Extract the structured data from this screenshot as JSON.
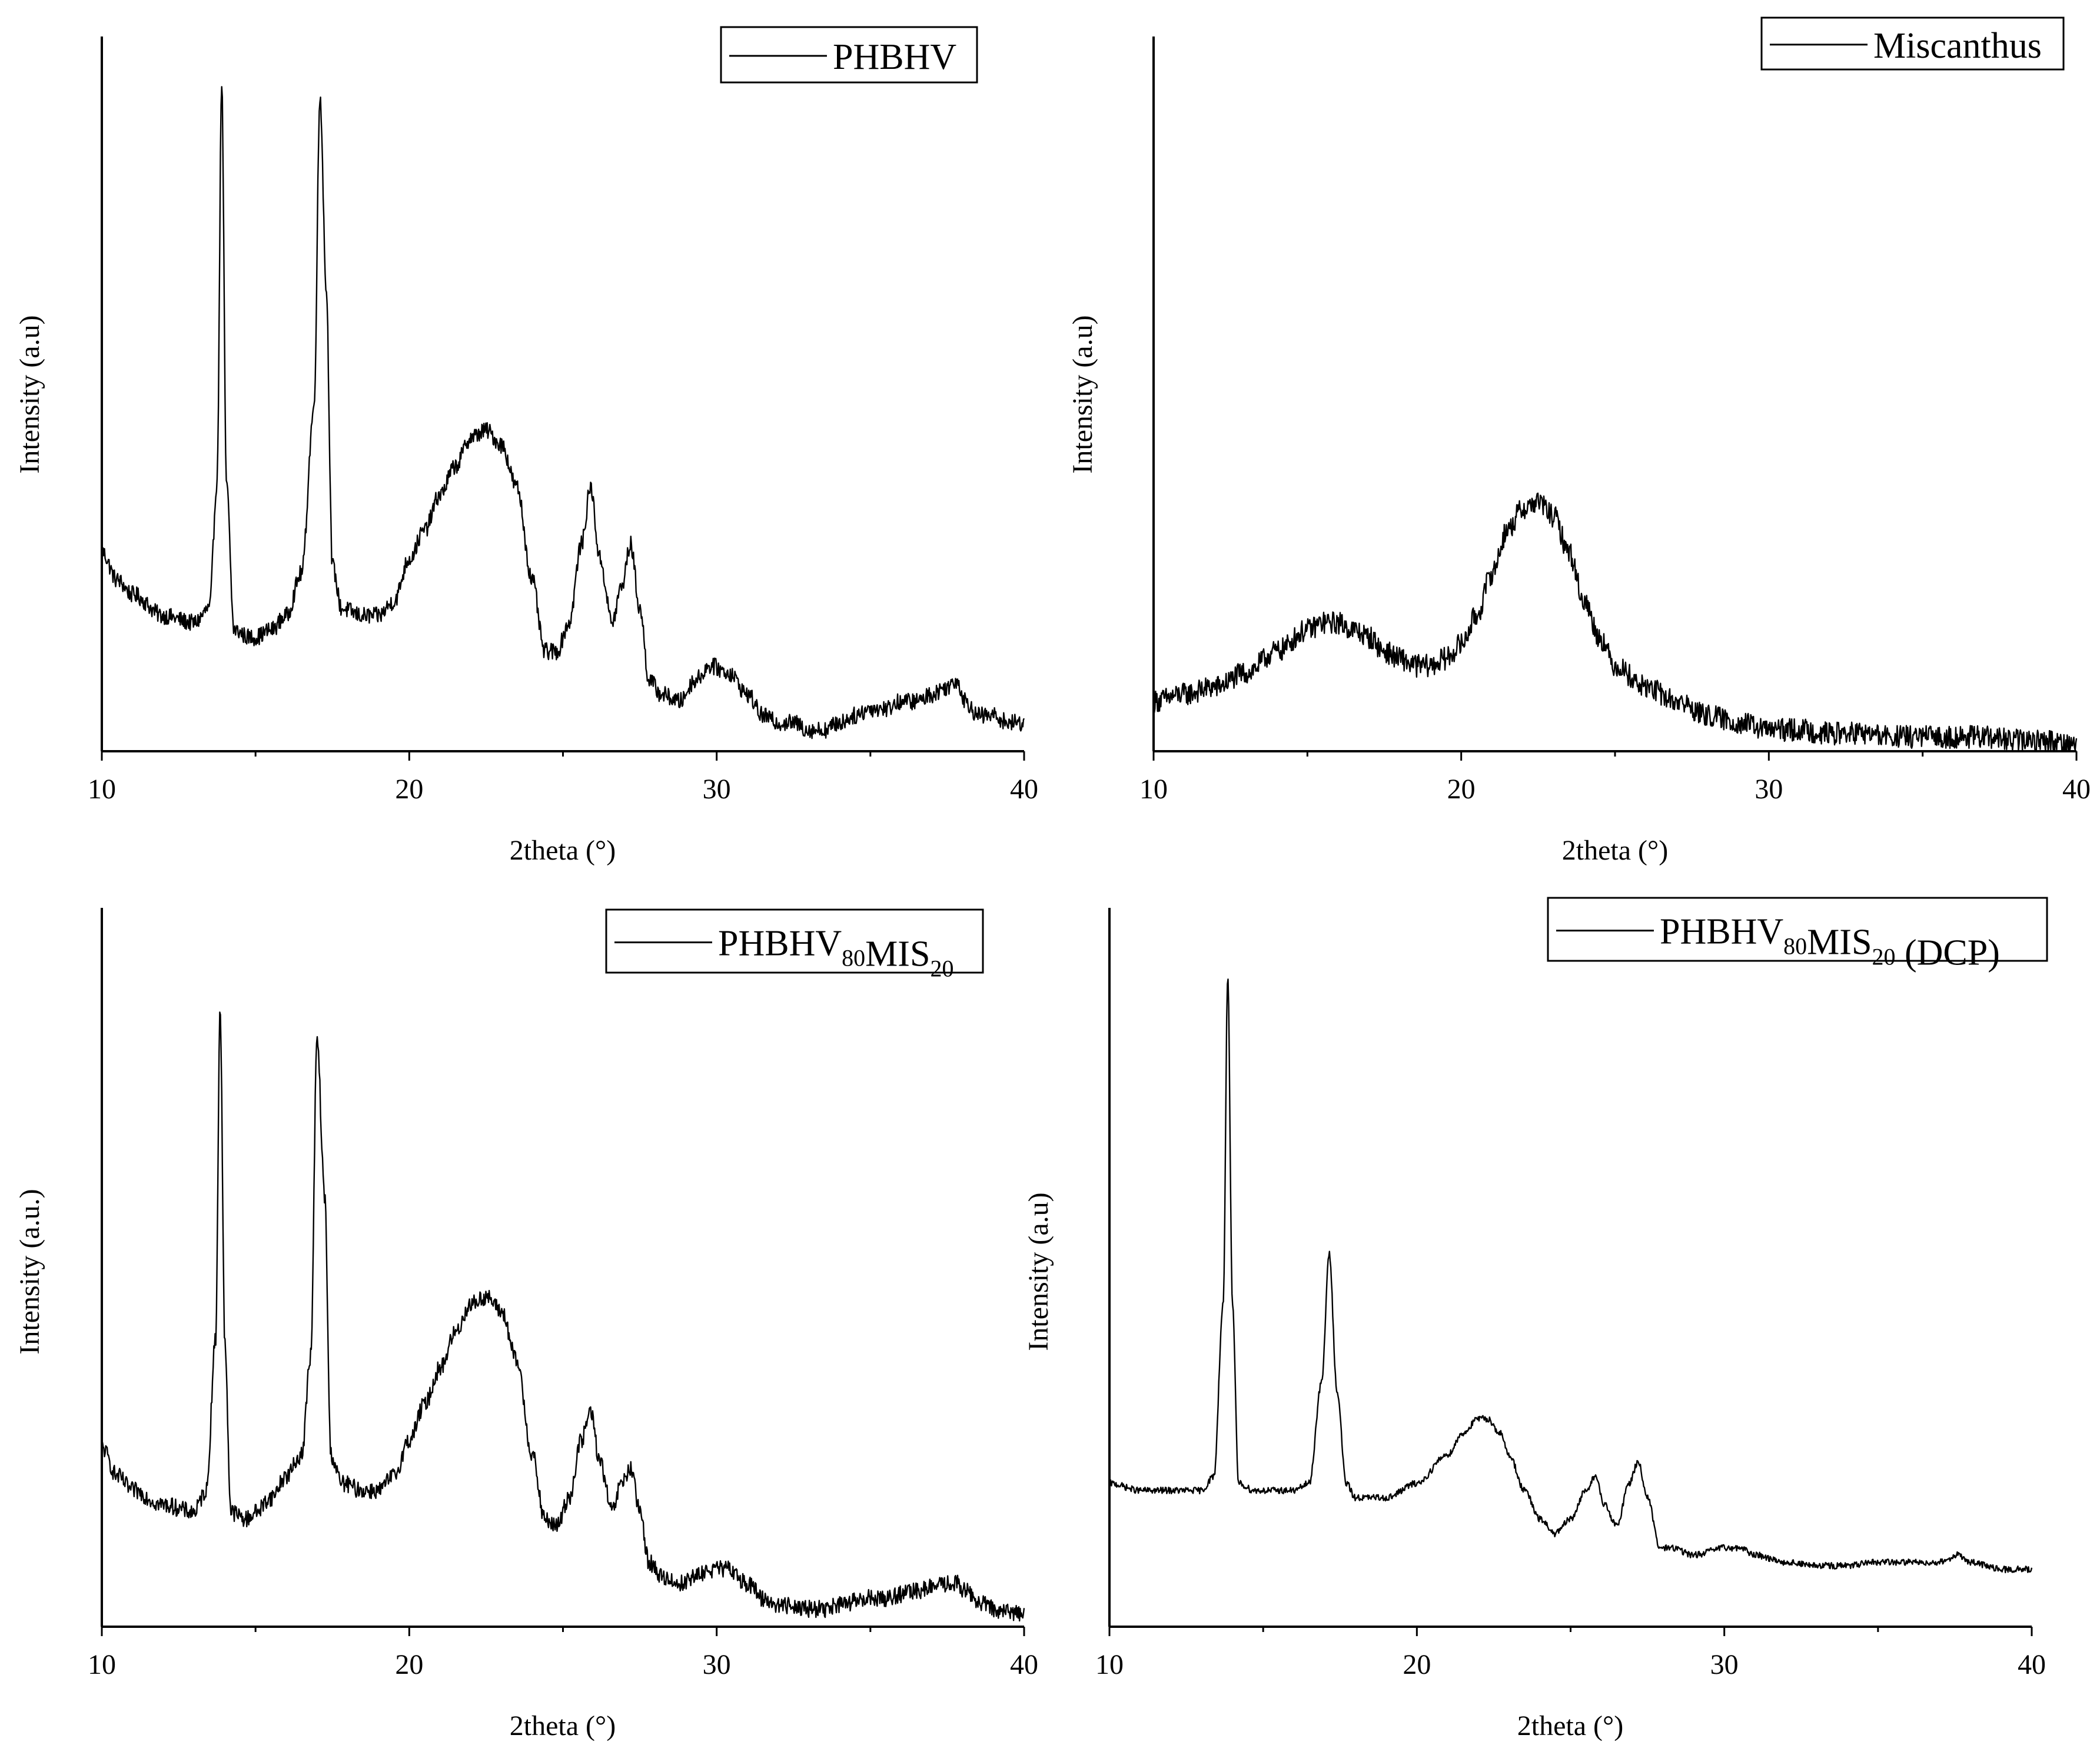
{
  "chart_data": [
    {
      "type": "line",
      "panel": "top-left",
      "title": "",
      "xlabel": "2theta (°)",
      "ylabel": "Intensity (a.u)",
      "xlim": [
        10,
        40
      ],
      "ylim": [
        0,
        100
      ],
      "xticks": [
        10,
        20,
        30,
        40
      ],
      "grid": false,
      "legend_position": "top-right",
      "legend": {
        "prefix": "PHBHV",
        "sub1": "",
        "mid": "",
        "sub2": "",
        "suffix": ""
      },
      "series": [
        {
          "name": "PHBHV",
          "noise": 1.2,
          "x": [
            10,
            10.5,
            11,
            12,
            13,
            13.5,
            13.75,
            13.9,
            14.05,
            14.3,
            14.8,
            15,
            15.5,
            16,
            16.5,
            16.9,
            17.1,
            17.3,
            17.5,
            17.8,
            18.5,
            19,
            19.5,
            20,
            20.5,
            21,
            21.5,
            22,
            22.5,
            23,
            23.5,
            24,
            24.4,
            24.8,
            25.2,
            25.6,
            25.9,
            26.2,
            26.6,
            26.9,
            27.2,
            27.5,
            27.8,
            28.2,
            28.8,
            29.3,
            29.8,
            30.4,
            31,
            31.5,
            32,
            32.5,
            33,
            33.5,
            34,
            34.5,
            35,
            35.5,
            36,
            36.5,
            37,
            37.5,
            37.8,
            38.1,
            38.5,
            39,
            39.5,
            40
          ],
          "y": [
            28,
            24,
            22,
            19,
            18,
            20,
            38,
            94,
            38,
            17,
            16,
            16,
            17,
            19,
            25,
            48,
            92,
            65,
            26,
            20,
            19,
            19,
            21,
            27,
            31,
            36,
            40,
            44,
            45,
            43,
            37,
            24,
            14,
            14,
            18,
            29,
            37,
            27,
            18,
            23,
            29,
            20,
            10,
            8,
            7,
            10,
            12,
            11,
            8,
            5,
            4,
            4,
            3,
            3,
            4,
            5,
            6,
            6,
            7,
            7,
            8,
            9,
            10,
            7,
            5,
            5,
            4,
            4
          ]
        }
      ]
    },
    {
      "type": "line",
      "panel": "top-right",
      "title": "",
      "xlabel": "2theta (°)",
      "ylabel": "Intensity (a.u)",
      "xlim": [
        10,
        40
      ],
      "ylim": [
        0,
        100
      ],
      "xticks": [
        10,
        20,
        30,
        40
      ],
      "grid": false,
      "legend_position": "top-right",
      "legend": {
        "prefix": "Miscanthus",
        "sub1": "",
        "mid": "",
        "sub2": "",
        "suffix": ""
      },
      "series": [
        {
          "name": "Miscanthus",
          "noise": 1.6,
          "x": [
            10,
            11,
            12,
            13,
            14,
            15,
            15.5,
            16,
            16.5,
            17,
            17.5,
            18,
            18.5,
            19,
            19.5,
            20,
            20.5,
            21,
            21.5,
            22,
            22.5,
            23,
            23.5,
            24,
            24.5,
            25,
            26,
            27,
            28,
            29,
            30,
            31,
            32,
            33,
            34,
            35,
            36,
            37,
            38,
            39,
            40
          ],
          "y": [
            7,
            8,
            9,
            11,
            14,
            17,
            18,
            18,
            17,
            16,
            14,
            13,
            12,
            12,
            13,
            15,
            19,
            25,
            31,
            34,
            35,
            33,
            28,
            21,
            16,
            12,
            9,
            7,
            5,
            4,
            3,
            3,
            2.5,
            2.5,
            2,
            2,
            2,
            2,
            1.5,
            1.5,
            1
          ]
        }
      ]
    },
    {
      "type": "line",
      "panel": "bottom-left",
      "title": "",
      "xlabel": "2theta (°)",
      "ylabel": "Intensity (a.u.)",
      "xlim": [
        10,
        40
      ],
      "ylim": [
        0,
        100
      ],
      "xticks": [
        10,
        20,
        30,
        40
      ],
      "grid": false,
      "legend_position": "top-right",
      "legend": {
        "prefix": "PHBHV",
        "sub1": "80",
        "mid": "MIS",
        "sub2": "20",
        "suffix": ""
      },
      "series": [
        {
          "name": "PHBHV80MIS20",
          "noise": 1.2,
          "x": [
            10,
            10.5,
            11,
            12,
            13,
            13.4,
            13.7,
            13.85,
            14.0,
            14.2,
            14.7,
            15,
            15.5,
            16,
            16.5,
            16.8,
            17.0,
            17.25,
            17.45,
            17.8,
            18.5,
            19,
            19.5,
            20,
            20.5,
            21,
            21.5,
            22,
            22.5,
            23,
            23.5,
            24,
            24.4,
            24.8,
            25.2,
            25.6,
            25.9,
            26.2,
            26.6,
            26.9,
            27.2,
            27.5,
            27.8,
            28.2,
            28.8,
            29.3,
            29.8,
            30.4,
            31,
            31.5,
            32,
            32.5,
            33,
            33.5,
            34,
            34.5,
            35,
            35.5,
            36,
            36.5,
            37,
            37.5,
            37.8,
            38.1,
            38.5,
            39,
            39.5,
            40
          ],
          "y": [
            25,
            21,
            19,
            17,
            16,
            19,
            40,
            86,
            40,
            16,
            15,
            16,
            18,
            21,
            24,
            38,
            82,
            60,
            24,
            20,
            19,
            19,
            21,
            26,
            31,
            36,
            41,
            45,
            46,
            44,
            37,
            24,
            15,
            14,
            18,
            26,
            30,
            23,
            16,
            20,
            22,
            16,
            9,
            7,
            6,
            7,
            8,
            8,
            6,
            4,
            3,
            3,
            2.5,
            2.5,
            3,
            3.5,
            4,
            4,
            4.5,
            5,
            5.5,
            6,
            6,
            5,
            3.5,
            2.5,
            2,
            2
          ]
        }
      ]
    },
    {
      "type": "line",
      "panel": "bottom-right",
      "title": "",
      "xlabel": "2theta (°)",
      "ylabel": "Intensity (a.u)",
      "xlim": [
        10,
        40
      ],
      "ylim": [
        0,
        100
      ],
      "xticks": [
        10,
        20,
        30,
        40
      ],
      "grid": false,
      "legend_position": "top-right",
      "legend": {
        "prefix": "PHBHV",
        "sub1": "80",
        "mid": "MIS",
        "sub2": "20",
        "suffix": " (DCP)"
      },
      "series": [
        {
          "name": "PHBHV80MIS20 (DCP)",
          "noise": 0.45,
          "x": [
            10,
            11,
            12,
            13,
            13.4,
            13.7,
            13.85,
            14.0,
            14.2,
            14.7,
            15,
            16,
            16.5,
            16.9,
            17.15,
            17.4,
            17.7,
            18,
            19,
            20,
            21,
            21.5,
            22,
            22.3,
            22.7,
            23,
            23.5,
            24,
            24.5,
            25,
            25.5,
            25.8,
            26.1,
            26.5,
            26.9,
            27.2,
            27.5,
            27.9,
            28.3,
            29,
            30,
            30.5,
            31,
            32,
            33,
            34,
            35,
            36,
            37,
            37.6,
            38,
            39,
            40
          ],
          "y": [
            20,
            19,
            19,
            19,
            21,
            45,
            91,
            45,
            20,
            19,
            19,
            19,
            20,
            34,
            52,
            33,
            20,
            18,
            18,
            20,
            24,
            27,
            29,
            29,
            27,
            24,
            19,
            15,
            13,
            15,
            19,
            21,
            17,
            14,
            20,
            23,
            18,
            11,
            11,
            10,
            11,
            11,
            10,
            9,
            8.5,
            8.5,
            9,
            9,
            9,
            10,
            9,
            8,
            8
          ]
        }
      ]
    }
  ]
}
